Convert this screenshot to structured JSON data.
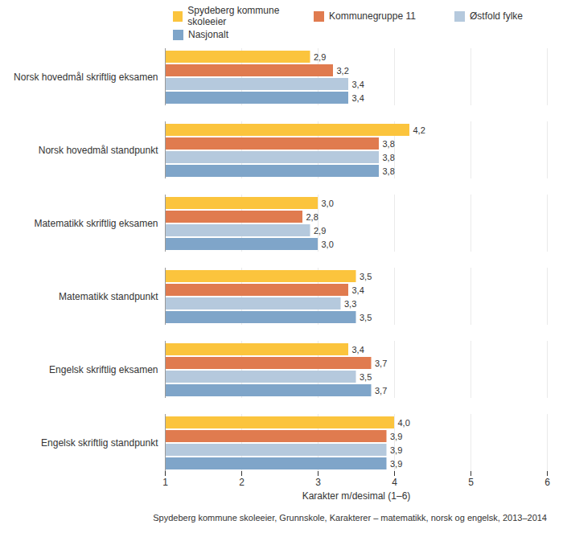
{
  "chart_data": {
    "type": "bar",
    "orientation": "horizontal",
    "x_label": "Karakter m/desimal (1–6)",
    "caption": "Spydeberg kommune skoleeier, Grunnskole, Karakterer – matematikk, norsk og engelsk, 2013–2014",
    "categories": [
      "Norsk hovedmål skriftlig eksamen",
      "Norsk hovedmål standpunkt",
      "Matematikk skriftlig eksamen",
      "Matematikk standpunkt",
      "Engelsk skriftlig eksamen",
      "Engelsk skriftlig standpunkt"
    ],
    "series": [
      {
        "name": "Spydeberg kommune skoleeier",
        "color": "#fbc43d",
        "values": [
          2.9,
          4.2,
          3.0,
          3.5,
          3.4,
          4.0
        ],
        "value_labels": [
          "2,9",
          "4,2",
          "3,0",
          "3,5",
          "3,4",
          "4,0"
        ]
      },
      {
        "name": "Kommunegruppe 11",
        "color": "#e07b4f",
        "values": [
          3.2,
          3.8,
          2.8,
          3.4,
          3.7,
          3.9
        ],
        "value_labels": [
          "3,2",
          "3,8",
          "2,8",
          "3,4",
          "3,7",
          "3,9"
        ]
      },
      {
        "name": "Østfold fylke",
        "color": "#b5c9dd",
        "values": [
          3.4,
          3.8,
          2.9,
          3.3,
          3.5,
          3.9
        ],
        "value_labels": [
          "3,4",
          "3,8",
          "2,9",
          "3,3",
          "3,5",
          "3,9"
        ]
      },
      {
        "name": "Nasjonalt",
        "color": "#7fa5c9",
        "values": [
          3.4,
          3.8,
          3.0,
          3.5,
          3.7,
          3.9
        ],
        "value_labels": [
          "3,4",
          "3,8",
          "3,0",
          "3,5",
          "3,7",
          "3,9"
        ]
      }
    ],
    "xlim": [
      1,
      6
    ],
    "xticks": [
      1,
      2,
      3,
      4,
      5,
      6
    ],
    "grid": true,
    "legend": "top",
    "data_labels": true
  }
}
